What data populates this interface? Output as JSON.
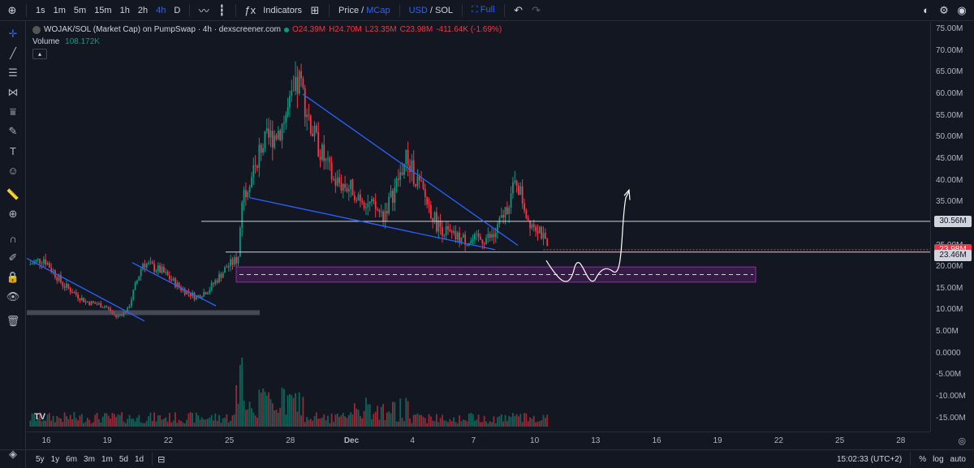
{
  "toolbar": {
    "timeframes": [
      "1s",
      "1m",
      "5m",
      "15m",
      "1h",
      "2h",
      "4h",
      "D"
    ],
    "active_timeframe": "4h",
    "indicators_label": "Indicators",
    "price_label": "Price",
    "mcap_label": "MCap",
    "usd_label": "USD",
    "sol_label": "SOL",
    "full_label": "Full",
    "separator": "/"
  },
  "legend": {
    "title": "WOJAK/SOL (Market Cap) on PumpSwap · 4h · dexscreener.com",
    "o": "O24.39M",
    "h": "H24.70M",
    "l": "L23.35M",
    "c": "C23.98M",
    "change": "-411.64K (-1.69%)",
    "volume_label": "Volume",
    "volume_value": "108.172K"
  },
  "bottombar": {
    "ranges": [
      "5y",
      "1y",
      "6m",
      "3m",
      "1m",
      "5d",
      "1d"
    ],
    "clock": "15:02:33 (UTC+2)",
    "percent": "%",
    "log": "log",
    "auto": "auto"
  },
  "colors": {
    "bg": "#131722",
    "up": "#089981",
    "down": "#f23645",
    "trend": "#2962ff",
    "zone": "#9c27b0",
    "drawing": "#ffffff"
  },
  "chart_data": {
    "type": "candlestick",
    "symbol": "WOJAK/SOL",
    "interval": "4h",
    "x_ticks": [
      "16",
      "19",
      "22",
      "25",
      "28",
      "Dec",
      "4",
      "7",
      "10",
      "13",
      "16",
      "19",
      "22",
      "25",
      "28"
    ],
    "y_ticks": [
      "75.00M",
      "70.00M",
      "65.00M",
      "60.00M",
      "55.00M",
      "50.00M",
      "45.00M",
      "40.00M",
      "35.00M",
      "30.00M",
      "25.00M",
      "20.00M",
      "15.00M",
      "10.00M",
      "5.00M",
      "0.0000",
      "-5.00M",
      "-10.00M",
      "-15.00M"
    ],
    "ylim": [
      -15,
      75
    ],
    "price_labels": [
      {
        "text": "30.56M",
        "value": 30.56,
        "style": "line"
      },
      {
        "text": "23.98M",
        "value": 23.98,
        "style": "current"
      },
      {
        "text": "23.46M",
        "value": 23.46,
        "style": "line"
      }
    ],
    "key_points_millions": {
      "start_level": 20.5,
      "low_nov19": 8.5,
      "breakout_nov25": 36,
      "peak_nov29": 63,
      "local_high_dec3": 45,
      "local_high_dec8": 40,
      "last_close": 23.98
    },
    "annotations": [
      "falling trendline Nov 15-20",
      "falling trendline Nov 20-23",
      "falling wedge Nov 29 - Dec 9",
      "horizontal line 30.56M",
      "demand zone ~17M-20M",
      "projected path dipping into zone then rising toward ~38M"
    ]
  }
}
